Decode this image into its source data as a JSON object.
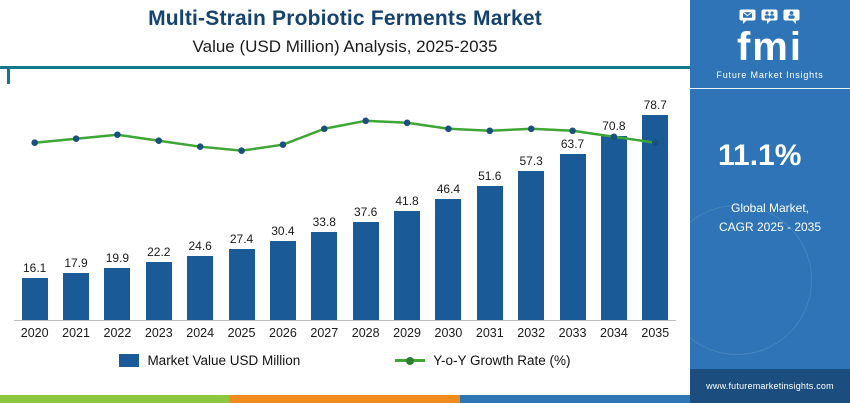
{
  "header": {
    "title": "Multi-Strain Probiotic Ferments Market",
    "subtitle": "Value (USD Million) Analysis, 2025-2035"
  },
  "legend": {
    "bar_label": "Market Value USD Million",
    "line_label": "Y-o-Y Growth Rate (%)"
  },
  "sidebar": {
    "brand_short": "fmi",
    "brand_name": "Future Market Insights",
    "cagr_value": "11.1%",
    "cagr_label_line1": "Global Market,",
    "cagr_label_line2": "CAGR 2025 - 2035",
    "website": "www.futuremarketinsights.com"
  },
  "colors": {
    "bar": "#1A5A96",
    "line": "#3FA535",
    "marker": "#1B4F7E",
    "legend_dot": "#2E7D32",
    "title": "#16436E",
    "teal_rule": "#117A8A",
    "sidebar_bg": "#2E74B6",
    "sidebar_footer_bg": "#1B4E7E",
    "stripe_green": "#8DC63F",
    "stripe_orange": "#F08B1D",
    "stripe_blue": "#2E75B6"
  },
  "chart_data": {
    "type": "bar",
    "title": "Multi-Strain Probiotic Ferments Market",
    "subtitle": "Value (USD Million) Analysis, 2025-2035",
    "categories": [
      "2020",
      "2021",
      "2022",
      "2023",
      "2024",
      "2025",
      "2026",
      "2027",
      "2028",
      "2029",
      "2030",
      "2031",
      "2032",
      "2033",
      "2034",
      "2035"
    ],
    "series": [
      {
        "name": "Market Value USD Million",
        "type": "bar",
        "values": [
          16.1,
          17.9,
          19.9,
          22.2,
          24.6,
          27.4,
          30.4,
          33.8,
          37.6,
          41.8,
          46.4,
          51.6,
          57.3,
          63.7,
          70.8,
          78.7
        ]
      },
      {
        "name": "Y-o-Y Growth Rate (%)",
        "type": "line",
        "values": [
          11.0,
          11.1,
          11.2,
          11.05,
          10.9,
          10.8,
          10.95,
          11.35,
          11.55,
          11.5,
          11.35,
          11.3,
          11.35,
          11.3,
          11.15,
          11.0
        ],
        "estimated": true
      }
    ],
    "ylim": [
      0,
      80
    ],
    "grid": false,
    "legend_position": "bottom",
    "annotations": {
      "cagr": "11.1%",
      "cagr_period": "2025 - 2035"
    }
  }
}
